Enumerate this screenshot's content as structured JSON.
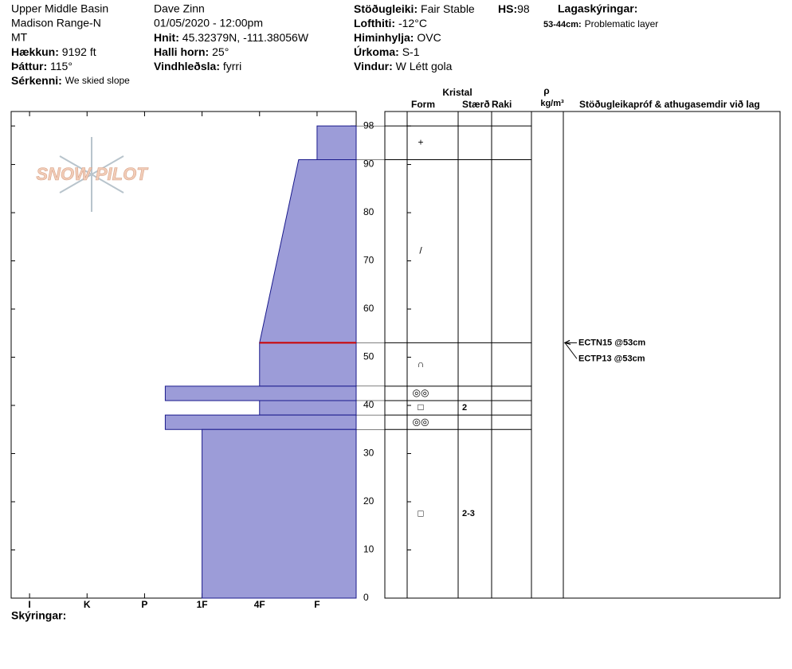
{
  "header": {
    "location": [
      "Upper Middle Basin",
      "Madison Range-N",
      "MT"
    ],
    "elevation": {
      "label": "Hækkun:",
      "value": "9192 ft"
    },
    "aspect": {
      "label": "Þáttur:",
      "value": "115°"
    },
    "features": {
      "label": "Sérkenni:",
      "value": "We skied slope"
    },
    "observer": "Dave Zinn",
    "datetime": "01/05/2020 - 12:00pm",
    "coords": {
      "label": "Hnit:",
      "value": "45.32379N, -111.38056W"
    },
    "slope": {
      "label": "Halli horn:",
      "value": "25°"
    },
    "wind_loading": {
      "label": "Vindhleðsla:",
      "value": "fyrri"
    },
    "stability": {
      "label": "Stöðugleiki:",
      "value": "Fair Stable"
    },
    "hs": {
      "label": "HS:",
      "value": 98
    },
    "air_temp": {
      "label": "Lofthiti:",
      "value": "-12°C"
    },
    "sky": {
      "label": "Himinhylja:",
      "value": "OVC"
    },
    "precip": {
      "label": "Úrkoma:",
      "value": "S-1"
    },
    "wind": {
      "label": "Vindur:",
      "value": "W Létt gola"
    },
    "layer_notes": {
      "label": "Lagaskýringar:",
      "items": [
        {
          "label": "53-44cm:",
          "value": "Problematic layer"
        }
      ]
    }
  },
  "columns": {
    "crystal": "Kristal",
    "form": "Form",
    "size": "Stærð",
    "moisture": "Raki",
    "rho": "ρ",
    "density_unit": "kg/m³",
    "tests": "Stöðugleikapróf & athugasemdir við lag"
  },
  "logo": "SNOW PILOT",
  "footer": "Skýringar:",
  "chart_data": {
    "type": "snow-profile",
    "color": "#9c9cd8",
    "edge_color": "#1a1a8c",
    "ylim": [
      0,
      101
    ],
    "yticks": [
      0,
      10,
      20,
      30,
      40,
      50,
      60,
      70,
      80,
      90,
      98
    ],
    "xlim": [
      6.32,
      0.32
    ],
    "xticks": [
      {
        "value": 6,
        "label": "I"
      },
      {
        "value": 5,
        "label": "K"
      },
      {
        "value": 4,
        "label": "P"
      },
      {
        "value": 3,
        "label": "1F"
      },
      {
        "value": 2,
        "label": "4F"
      },
      {
        "value": 1,
        "label": "F"
      }
    ],
    "layers": [
      {
        "top": 98,
        "bottom": 91,
        "hardness_top": 1,
        "hardness_bottom": 1,
        "form": "+"
      },
      {
        "top": 91,
        "bottom": 53,
        "hardness_top": 1.32,
        "hardness_bottom": 2,
        "form": "/"
      },
      {
        "top": 53,
        "bottom": 44,
        "hardness_top": 2,
        "hardness_bottom": 2,
        "form": "∩"
      },
      {
        "top": 44,
        "bottom": 41,
        "hardness_top": 3.64,
        "hardness_bottom": 3.64,
        "form": "◎◎"
      },
      {
        "top": 41,
        "bottom": 38,
        "hardness_top": 2,
        "hardness_bottom": 2,
        "form": "□",
        "size": 2
      },
      {
        "top": 38,
        "bottom": 35,
        "hardness_top": 3.64,
        "hardness_bottom": 3.64,
        "form": "◎◎"
      },
      {
        "top": 35,
        "bottom": 0,
        "hardness_top": 3,
        "hardness_bottom": 3,
        "form": "□",
        "size": "2-3"
      }
    ],
    "critical_depth": 53,
    "critical_color": "#cc0000",
    "tests": [
      {
        "label": "ECTN15 @53cm",
        "depth": 53
      },
      {
        "label": "ECTP13 @53cm",
        "depth": 53
      }
    ]
  }
}
